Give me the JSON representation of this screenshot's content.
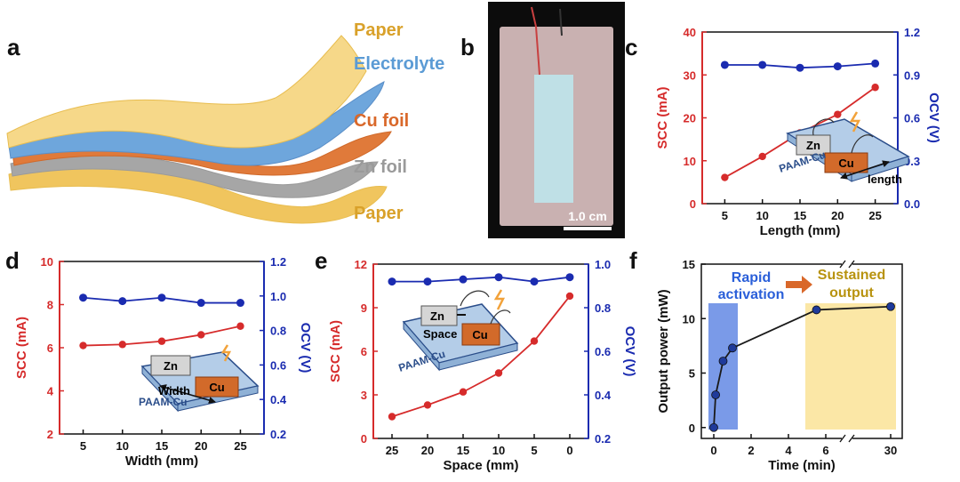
{
  "panel_letters": {
    "a": "a",
    "b": "b",
    "c": "c",
    "d": "d",
    "e": "e",
    "f": "f"
  },
  "panel_a": {
    "layers": [
      "Paper",
      "Electrolyte",
      "Cu foil",
      "Zn foil",
      "Paper"
    ],
    "colors": {
      "paper": "#e2b33c",
      "electrolyte": "#5b9bd5",
      "cu": "#d9682a",
      "zn": "#a6a6a6"
    }
  },
  "panel_b": {
    "scale_bar": "1.0 cm"
  },
  "colors": {
    "scc": "#d62b2b",
    "ocv": "#1a2bb0",
    "power": "#1a1a1a",
    "cu_block": "#d26a2a",
    "zn_block": "#d5d5d5",
    "gel": "#b4cde8",
    "rapid_bg": "#6b8fe6",
    "sustained_bg": "#fbe7a6",
    "sustained_text": "#b8930f",
    "rapid_text": "#2a5fd9"
  },
  "chart_data": [
    {
      "panel": "c",
      "type": "line",
      "x": [
        5,
        10,
        15,
        20,
        25
      ],
      "xlabel": "Length (mm)",
      "xticks": [
        "5",
        "10",
        "15",
        "20",
        "25"
      ],
      "xlim": [
        2,
        28
      ],
      "ylabel": "SCC (mA)",
      "ylim": [
        0,
        40
      ],
      "yticks": [
        "0",
        "10",
        "20",
        "30",
        "40"
      ],
      "y2label": "OCV (V)",
      "y2lim": [
        0.0,
        1.2
      ],
      "y2ticks": [
        "0.0",
        "0.3",
        "0.6",
        "0.9",
        "1.2"
      ],
      "series": [
        {
          "axis": "left",
          "values": [
            6.1,
            11.0,
            16.5,
            20.8,
            27.1
          ]
        },
        {
          "axis": "right",
          "values": [
            0.97,
            0.97,
            0.95,
            0.96,
            0.98
          ]
        }
      ],
      "inset": {
        "zn": "Zn",
        "cu": "Cu",
        "gel": "PAAM-Cu",
        "dim": "length"
      }
    },
    {
      "panel": "d",
      "type": "line",
      "x": [
        5,
        10,
        15,
        20,
        25
      ],
      "xlabel": "Width (mm)",
      "xticks": [
        "5",
        "10",
        "15",
        "20",
        "25"
      ],
      "xlim": [
        2,
        28
      ],
      "ylabel": "SCC (mA)",
      "ylim": [
        2,
        10
      ],
      "yticks": [
        "2",
        "4",
        "6",
        "8",
        "10"
      ],
      "y2label": "OCV  (V)",
      "y2lim": [
        0.2,
        1.2
      ],
      "y2ticks": [
        "0.2",
        "0.4",
        "0.6",
        "0.8",
        "1.0",
        "1.2"
      ],
      "series": [
        {
          "axis": "left",
          "values": [
            6.1,
            6.15,
            6.3,
            6.6,
            7.0
          ]
        },
        {
          "axis": "right",
          "values": [
            0.99,
            0.97,
            0.99,
            0.96,
            0.96
          ]
        }
      ],
      "inset": {
        "zn": "Zn",
        "cu": "Cu",
        "gel": "PAAM-Cu",
        "dim": "Width"
      }
    },
    {
      "panel": "e",
      "type": "line",
      "x": [
        "25",
        "20",
        "15",
        "10",
        "5",
        "0"
      ],
      "xlabel": "Space (mm)",
      "xticks": [
        "25",
        "20",
        "15",
        "10",
        "5",
        "0"
      ],
      "ylabel": "SCC (mA)",
      "ylim": [
        0,
        12
      ],
      "yticks": [
        "0",
        "3",
        "6",
        "9",
        "12"
      ],
      "y2label": "OCV  (V)",
      "y2lim": [
        0.2,
        1.0
      ],
      "y2ticks": [
        "0.2",
        "0.4",
        "0.6",
        "0.8",
        "1.0"
      ],
      "series": [
        {
          "axis": "left",
          "values": [
            1.5,
            2.3,
            3.2,
            4.5,
            6.7,
            9.8
          ]
        },
        {
          "axis": "right",
          "values": [
            0.92,
            0.92,
            0.93,
            0.94,
            0.92,
            0.94
          ]
        }
      ],
      "inset": {
        "zn": "Zn",
        "cu": "Cu",
        "gel": "PAAM-Cu",
        "dim": "Space"
      }
    },
    {
      "panel": "f",
      "type": "line",
      "x": [
        0,
        0.1,
        0.5,
        1.0,
        5.5,
        30
      ],
      "xlabel": "Time (min)",
      "xticks": [
        "0",
        "2",
        "4",
        "6",
        "30"
      ],
      "ylabel": "Output power (mW)",
      "ylim": [
        -1,
        15
      ],
      "yticks": [
        "0",
        "5",
        "10",
        "15"
      ],
      "series": [
        {
          "values": [
            0.0,
            3.0,
            6.1,
            7.3,
            10.8,
            11.1
          ]
        }
      ],
      "annotations": {
        "rapid": [
          "Rapid",
          "activation"
        ],
        "sustained": [
          "Sustained",
          "output"
        ]
      }
    }
  ]
}
